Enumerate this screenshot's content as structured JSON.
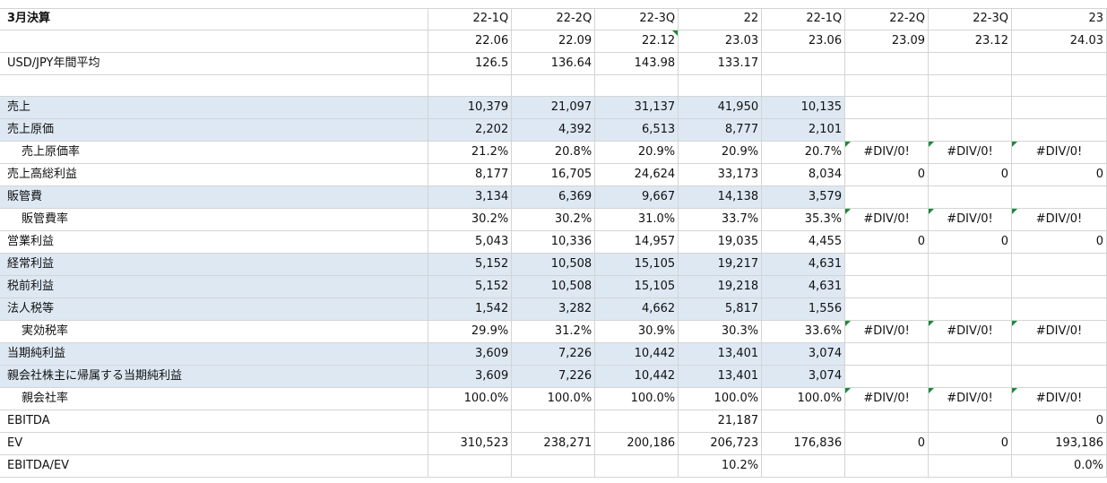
{
  "header": {
    "label": "3月決算",
    "periods": [
      "22-1Q",
      "22-2Q",
      "22-3Q",
      "22",
      "22-1Q",
      "22-2Q",
      "22-3Q",
      "23"
    ],
    "dates": [
      "22.06",
      "22.09",
      "22.12",
      "23.03",
      "23.06",
      "23.09",
      "23.12",
      "24.03"
    ]
  },
  "rows": [
    {
      "label": "USD/JPY年間平均",
      "indent": false,
      "highlight": false,
      "cells": [
        "126.5",
        "136.64",
        "143.98",
        "133.17",
        "",
        "",
        "",
        ""
      ]
    },
    {
      "label": "",
      "indent": false,
      "highlight": false,
      "cells": [
        "",
        "",
        "",
        "",
        "",
        "",
        "",
        ""
      ]
    },
    {
      "label": "売上",
      "indent": false,
      "highlight": true,
      "cells": [
        "10,379",
        "21,097",
        "31,137",
        "41,950",
        "10,135",
        "",
        "",
        ""
      ]
    },
    {
      "label": "売上原価",
      "indent": false,
      "highlight": true,
      "cells": [
        "2,202",
        "4,392",
        "6,513",
        "8,777",
        "2,101",
        "",
        "",
        ""
      ]
    },
    {
      "label": "売上原価率",
      "indent": true,
      "highlight": false,
      "cells": [
        "21.2%",
        "20.8%",
        "20.9%",
        "20.9%",
        "20.7%",
        "#DIV/0!",
        "#DIV/0!",
        "#DIV/0!"
      ]
    },
    {
      "label": "売上高総利益",
      "indent": false,
      "highlight": false,
      "cells": [
        "8,177",
        "16,705",
        "24,624",
        "33,173",
        "8,034",
        "0",
        "0",
        "0"
      ]
    },
    {
      "label": "販管費",
      "indent": false,
      "highlight": true,
      "cells": [
        "3,134",
        "6,369",
        "9,667",
        "14,138",
        "3,579",
        "",
        "",
        ""
      ]
    },
    {
      "label": "販管費率",
      "indent": true,
      "highlight": false,
      "cells": [
        "30.2%",
        "30.2%",
        "31.0%",
        "33.7%",
        "35.3%",
        "#DIV/0!",
        "#DIV/0!",
        "#DIV/0!"
      ]
    },
    {
      "label": "営業利益",
      "indent": false,
      "highlight": false,
      "cells": [
        "5,043",
        "10,336",
        "14,957",
        "19,035",
        "4,455",
        "0",
        "0",
        "0"
      ]
    },
    {
      "label": "経常利益",
      "indent": false,
      "highlight": true,
      "cells": [
        "5,152",
        "10,508",
        "15,105",
        "19,217",
        "4,631",
        "",
        "",
        ""
      ]
    },
    {
      "label": "税前利益",
      "indent": false,
      "highlight": true,
      "cells": [
        "5,152",
        "10,508",
        "15,105",
        "19,218",
        "4,631",
        "",
        "",
        ""
      ]
    },
    {
      "label": "法人税等",
      "indent": false,
      "highlight": true,
      "cells": [
        "1,542",
        "3,282",
        "4,662",
        "5,817",
        "1,556",
        "",
        "",
        ""
      ]
    },
    {
      "label": "実効税率",
      "indent": true,
      "highlight": false,
      "cells": [
        "29.9%",
        "31.2%",
        "30.9%",
        "30.3%",
        "33.6%",
        "#DIV/0!",
        "#DIV/0!",
        "#DIV/0!"
      ]
    },
    {
      "label": "当期純利益",
      "indent": false,
      "highlight": true,
      "cells": [
        "3,609",
        "7,226",
        "10,442",
        "13,401",
        "3,074",
        "",
        "",
        ""
      ]
    },
    {
      "label": "親会社株主に帰属する当期純利益",
      "indent": false,
      "highlight": true,
      "cells": [
        "3,609",
        "7,226",
        "10,442",
        "13,401",
        "3,074",
        "",
        "",
        ""
      ]
    },
    {
      "label": "親会社率",
      "indent": true,
      "highlight": false,
      "cells": [
        "100.0%",
        "100.0%",
        "100.0%",
        "100.0%",
        "100.0%",
        "#DIV/0!",
        "#DIV/0!",
        "#DIV/0!"
      ]
    },
    {
      "label": "EBITDA",
      "indent": false,
      "highlight": false,
      "cells": [
        "",
        "",
        "",
        "21,187",
        "",
        "",
        "",
        "0"
      ]
    },
    {
      "label": "EV",
      "indent": false,
      "highlight": false,
      "cells": [
        "310,523",
        "238,271",
        "200,186",
        "206,723",
        "176,836",
        "0",
        "0",
        "193,186"
      ]
    },
    {
      "label": "EBITDA/EV",
      "indent": false,
      "highlight": false,
      "cells": [
        "",
        "",
        "",
        "10.2%",
        "",
        "",
        "",
        "0.0%"
      ]
    }
  ],
  "colors": {
    "highlight": "#dde8f3",
    "grid": "#d4d4d4",
    "error_marker": "#1a8a3a"
  }
}
